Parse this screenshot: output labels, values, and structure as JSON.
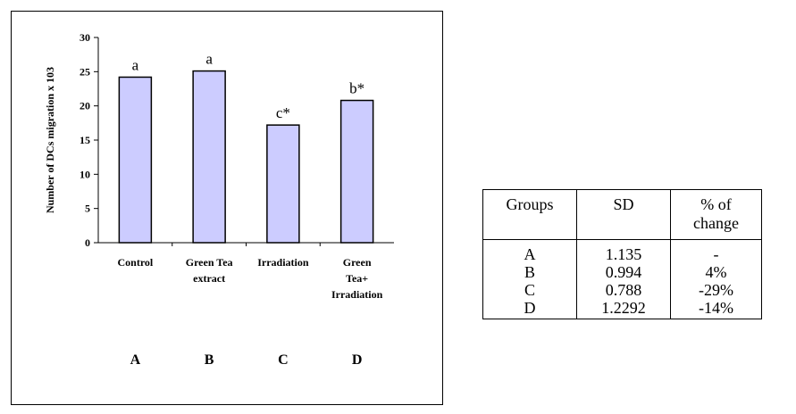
{
  "chart_data": {
    "type": "bar",
    "categories": [
      [
        "Control"
      ],
      [
        "Green Tea",
        "extract"
      ],
      [
        "Irradiation"
      ],
      [
        "Green",
        "Tea+",
        "Irradiation"
      ]
    ],
    "group_letters": [
      "A",
      "B",
      "C",
      "D"
    ],
    "values": [
      24.2,
      25.1,
      17.2,
      20.8
    ],
    "bar_labels": [
      "a",
      "a",
      "c*",
      "b*"
    ],
    "ylabel": "Number of DCs migration x 103",
    "ylim": [
      0,
      30
    ],
    "yticks": [
      0,
      5,
      10,
      15,
      20,
      25,
      30
    ],
    "grid": false,
    "colors": {
      "bar_fill": "#ccccff",
      "bar_stroke": "#000000"
    }
  },
  "table": {
    "headers": [
      [
        "Groups"
      ],
      [
        "SD"
      ],
      [
        "% of",
        "change"
      ]
    ],
    "rows": [
      [
        "A",
        "1.135",
        "-"
      ],
      [
        "B",
        "0.994",
        "4%"
      ],
      [
        "C",
        "0.788",
        "-29%"
      ],
      [
        "D",
        "1.2292",
        "-14%"
      ]
    ]
  }
}
